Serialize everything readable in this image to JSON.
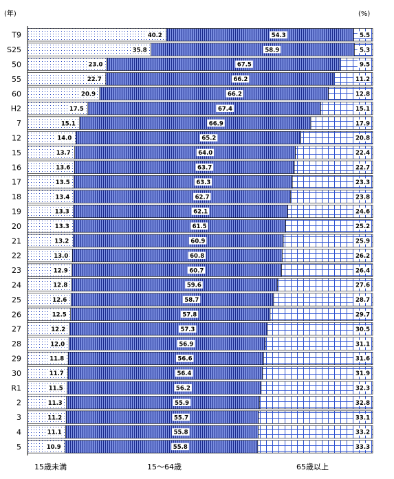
{
  "chart_data": {
    "type": "bar",
    "orientation": "horizontal",
    "stacked": true,
    "percent_stacked": true,
    "y_unit_label": "(年)",
    "x_unit_label": "(%)",
    "categories": [
      "T9",
      "S25",
      "50",
      "55",
      "60",
      "H2",
      "7",
      "12",
      "15",
      "16",
      "17",
      "18",
      "19",
      "20",
      "21",
      "22",
      "23",
      "24",
      "25",
      "26",
      "27",
      "28",
      "29",
      "30",
      "R1",
      "2",
      "3",
      "4",
      "5"
    ],
    "series": [
      {
        "name": "15歳未満",
        "values": [
          40.2,
          35.8,
          23.0,
          22.7,
          20.9,
          17.5,
          15.1,
          14.0,
          13.7,
          13.6,
          13.5,
          13.4,
          13.3,
          13.3,
          13.2,
          13.0,
          12.9,
          12.8,
          12.6,
          12.5,
          12.2,
          12.0,
          11.8,
          11.7,
          11.5,
          11.3,
          11.2,
          11.1,
          10.9
        ]
      },
      {
        "name": "15～64歳",
        "values": [
          54.3,
          58.9,
          67.5,
          66.2,
          66.2,
          67.4,
          66.9,
          65.2,
          64.0,
          63.7,
          63.3,
          62.7,
          62.1,
          61.5,
          60.9,
          60.8,
          60.7,
          59.6,
          58.7,
          57.8,
          57.3,
          56.9,
          56.6,
          56.4,
          56.2,
          55.9,
          55.7,
          55.8,
          55.8
        ]
      },
      {
        "name": "65歳以上",
        "values": [
          5.5,
          5.3,
          9.5,
          11.2,
          12.8,
          15.1,
          17.9,
          20.8,
          22.4,
          22.7,
          23.3,
          23.8,
          24.6,
          25.2,
          25.9,
          26.2,
          26.4,
          27.6,
          28.7,
          29.7,
          30.5,
          31.1,
          31.6,
          31.9,
          32.3,
          32.8,
          33.1,
          33.2,
          33.3
        ]
      }
    ],
    "value_labels": [
      [
        "40.2",
        "54.3",
        "5.5"
      ],
      [
        "35.8",
        "58.9",
        "5.3"
      ],
      [
        "23.0",
        "67.5",
        "9.5"
      ],
      [
        "22.7",
        "66.2",
        "11.2"
      ],
      [
        "20.9",
        "66.2",
        "12.8"
      ],
      [
        "17.5",
        "67.4",
        "15.1"
      ],
      [
        "15.1",
        "66.9",
        "17.9"
      ],
      [
        "14.0",
        "65.2",
        "20.8"
      ],
      [
        "13.7",
        "64.0",
        "22.4"
      ],
      [
        "13.6",
        "63.7",
        "22.7"
      ],
      [
        "13.5",
        "63.3",
        "23.3"
      ],
      [
        "13.4",
        "62.7",
        "23.8"
      ],
      [
        "13.3",
        "62.1",
        "24.6"
      ],
      [
        "13.3",
        "61.5",
        "25.2"
      ],
      [
        "13.2",
        "60.9",
        "25.9"
      ],
      [
        "13.0",
        "60.8",
        "26.2"
      ],
      [
        "12.9",
        "60.7",
        "26.4"
      ],
      [
        "12.8",
        "59.6",
        "27.6"
      ],
      [
        "12.6",
        "58.7",
        "28.7"
      ],
      [
        "12.5",
        "57.8",
        "29.7"
      ],
      [
        "12.2",
        "57.3",
        "30.5"
      ],
      [
        "12.0",
        "56.9",
        "31.1"
      ],
      [
        "11.8",
        "56.6",
        "31.6"
      ],
      [
        "11.7",
        "56.4",
        "31.9"
      ],
      [
        "11.5",
        "56.2",
        "32.3"
      ],
      [
        "11.3",
        "55.9",
        "32.8"
      ],
      [
        "11.2",
        "55.7",
        "33.1"
      ],
      [
        "11.1",
        "55.8",
        "33.2"
      ],
      [
        "10.9",
        "55.8",
        "33.3"
      ]
    ],
    "xlim": [
      0,
      100
    ],
    "legend_placement": "bottom",
    "grid": false,
    "colors": {
      "under15_dots": "#1f3fbf",
      "working_fill": "#3e55c9",
      "working_stripe": "#1a2a8c",
      "elderly_grid": "#2a4fd0",
      "outline": "#000000",
      "bg": "#ffffff"
    }
  }
}
